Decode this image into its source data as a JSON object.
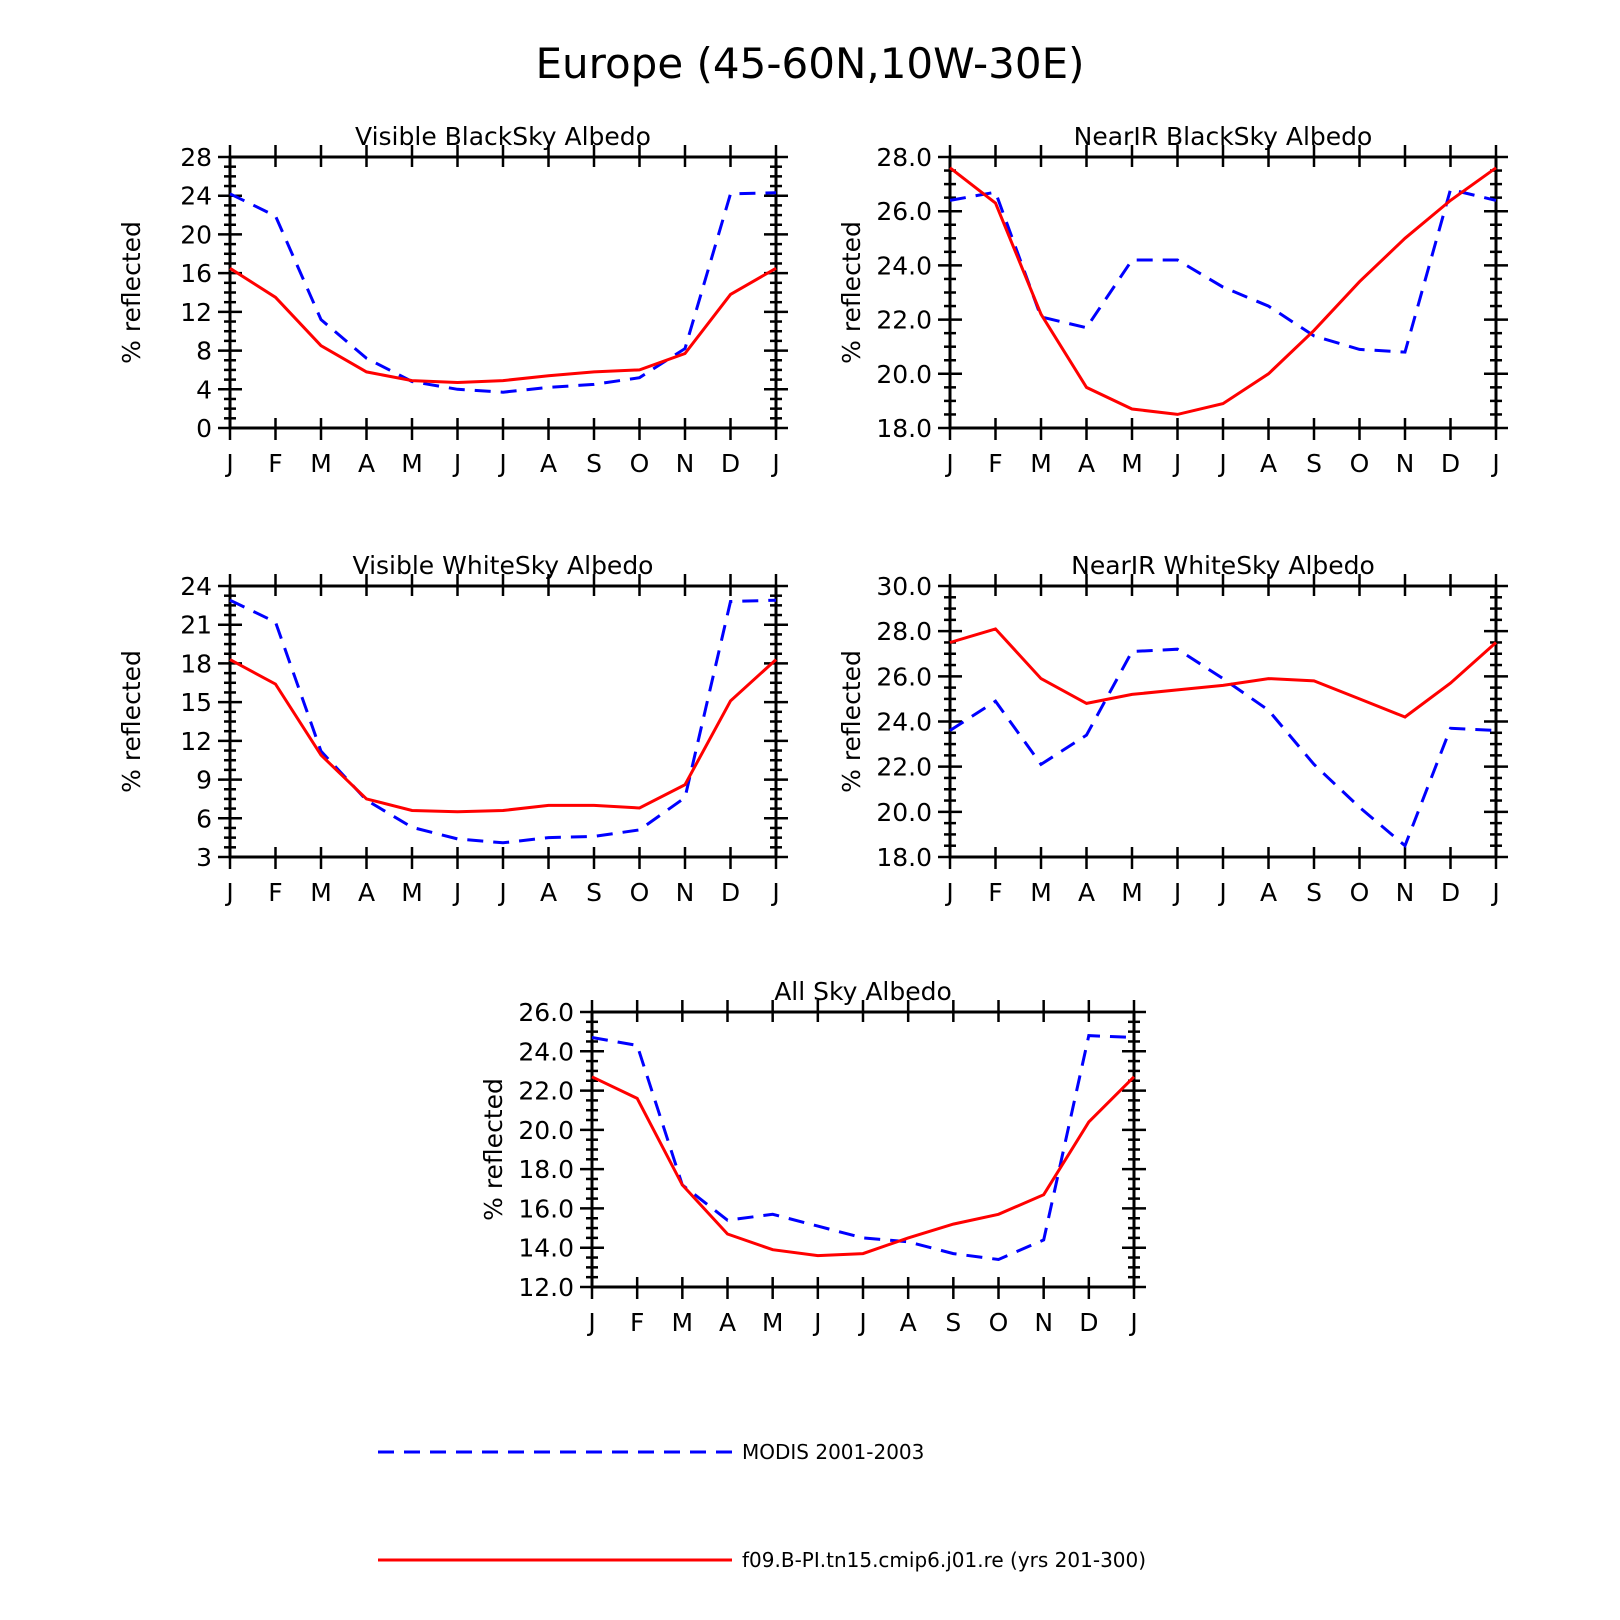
{
  "title": "Europe (45-60N,10W-30E)",
  "colors": {
    "modis": "#0000ff",
    "model": "#ff0000"
  },
  "legend": {
    "modis_label": "MODIS 2001-2003",
    "model_label": "f09.B-PI.tn15.cmip6.j01.re (yrs 201-300)"
  },
  "chart_data": [
    {
      "type": "line",
      "title": "Visible BlackSky Albedo",
      "ylabel": "% reflected",
      "xlabel": "",
      "categories": [
        "J",
        "F",
        "M",
        "A",
        "M",
        "J",
        "J",
        "A",
        "S",
        "O",
        "N",
        "D",
        "J"
      ],
      "ylim": [
        0,
        28
      ],
      "yticks": [
        "0",
        "4",
        "8",
        "12",
        "16",
        "20",
        "24",
        "28"
      ],
      "series": [
        {
          "name": "MODIS 2001-2003",
          "style": "dashed",
          "values": [
            24.2,
            21.9,
            11.2,
            7.2,
            4.8,
            4.0,
            3.7,
            4.2,
            4.5,
            5.2,
            8.2,
            24.2,
            24.3
          ]
        },
        {
          "name": "f09.B-PI.tn15.cmip6.j01.re (yrs 201-300)",
          "style": "solid",
          "values": [
            16.5,
            13.5,
            8.5,
            5.8,
            4.9,
            4.7,
            4.9,
            5.4,
            5.8,
            6.0,
            7.7,
            13.8,
            16.5
          ]
        }
      ]
    },
    {
      "type": "line",
      "title": "NearIR BlackSky Albedo",
      "ylabel": "% reflected",
      "xlabel": "",
      "categories": [
        "J",
        "F",
        "M",
        "A",
        "M",
        "J",
        "J",
        "A",
        "S",
        "O",
        "N",
        "D",
        "J"
      ],
      "ylim": [
        18,
        28
      ],
      "yticks": [
        "18.0",
        "20.0",
        "22.0",
        "24.0",
        "26.0",
        "28.0"
      ],
      "series": [
        {
          "name": "MODIS 2001-2003",
          "style": "dashed",
          "values": [
            26.4,
            26.7,
            22.1,
            21.7,
            24.2,
            24.2,
            23.2,
            22.5,
            21.4,
            20.9,
            20.8,
            26.8,
            26.4
          ]
        },
        {
          "name": "f09.B-PI.tn15.cmip6.j01.re (yrs 201-300)",
          "style": "solid",
          "values": [
            27.6,
            26.3,
            22.2,
            19.5,
            18.7,
            18.5,
            18.9,
            20.0,
            21.6,
            23.4,
            25.0,
            26.4,
            27.6
          ]
        }
      ]
    },
    {
      "type": "line",
      "title": "Visible WhiteSky Albedo",
      "ylabel": "% reflected",
      "xlabel": "",
      "categories": [
        "J",
        "F",
        "M",
        "A",
        "M",
        "J",
        "J",
        "A",
        "S",
        "O",
        "N",
        "D",
        "J"
      ],
      "ylim": [
        3,
        24
      ],
      "yticks": [
        "3",
        "6",
        "9",
        "12",
        "15",
        "18",
        "21",
        "24"
      ],
      "series": [
        {
          "name": "MODIS 2001-2003",
          "style": "dashed",
          "values": [
            22.9,
            21.2,
            11.2,
            7.4,
            5.3,
            4.4,
            4.1,
            4.5,
            4.6,
            5.1,
            7.6,
            22.8,
            22.9
          ]
        },
        {
          "name": "f09.B-PI.tn15.cmip6.j01.re (yrs 201-300)",
          "style": "solid",
          "values": [
            18.3,
            16.4,
            10.9,
            7.5,
            6.6,
            6.5,
            6.6,
            7.0,
            7.0,
            6.8,
            8.6,
            15.1,
            18.3
          ]
        }
      ]
    },
    {
      "type": "line",
      "title": "NearIR WhiteSky Albedo",
      "ylabel": "% reflected",
      "xlabel": "",
      "categories": [
        "J",
        "F",
        "M",
        "A",
        "M",
        "J",
        "J",
        "A",
        "S",
        "O",
        "N",
        "D",
        "J"
      ],
      "ylim": [
        18,
        30
      ],
      "yticks": [
        "18.0",
        "20.0",
        "22.0",
        "24.0",
        "26.0",
        "28.0",
        "30.0"
      ],
      "series": [
        {
          "name": "MODIS 2001-2003",
          "style": "dashed",
          "values": [
            23.6,
            24.9,
            22.1,
            23.4,
            27.1,
            27.2,
            25.9,
            24.5,
            22.1,
            20.2,
            18.5,
            23.7,
            23.6
          ]
        },
        {
          "name": "f09.B-PI.tn15.cmip6.j01.re (yrs 201-300)",
          "style": "solid",
          "values": [
            27.5,
            28.1,
            25.9,
            24.8,
            25.2,
            25.4,
            25.6,
            25.9,
            25.8,
            25.0,
            24.2,
            25.7,
            27.5
          ]
        }
      ]
    },
    {
      "type": "line",
      "title": "All Sky Albedo",
      "ylabel": "% reflected",
      "xlabel": "",
      "categories": [
        "J",
        "F",
        "M",
        "A",
        "M",
        "J",
        "J",
        "A",
        "S",
        "O",
        "N",
        "D",
        "J"
      ],
      "ylim": [
        12,
        26
      ],
      "yticks": [
        "12.0",
        "14.0",
        "16.0",
        "18.0",
        "20.0",
        "22.0",
        "24.0",
        "26.0"
      ],
      "series": [
        {
          "name": "MODIS 2001-2003",
          "style": "dashed",
          "values": [
            24.7,
            24.3,
            17.2,
            15.4,
            15.7,
            15.1,
            14.5,
            14.3,
            13.7,
            13.4,
            14.4,
            24.8,
            24.7
          ]
        },
        {
          "name": "f09.B-PI.tn15.cmip6.j01.re (yrs 201-300)",
          "style": "solid",
          "values": [
            22.7,
            21.6,
            17.2,
            14.7,
            13.9,
            13.6,
            13.7,
            14.5,
            15.2,
            15.7,
            16.7,
            20.4,
            22.7
          ]
        }
      ]
    }
  ]
}
